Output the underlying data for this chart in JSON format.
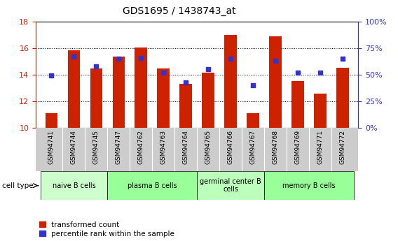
{
  "title": "GDS1695 / 1438743_at",
  "samples": [
    "GSM94741",
    "GSM94744",
    "GSM94745",
    "GSM94747",
    "GSM94762",
    "GSM94763",
    "GSM94764",
    "GSM94765",
    "GSM94766",
    "GSM94767",
    "GSM94768",
    "GSM94769",
    "GSM94771",
    "GSM94772"
  ],
  "transformed_count": [
    11.1,
    15.85,
    14.45,
    15.35,
    16.05,
    14.45,
    13.3,
    14.15,
    17.0,
    11.1,
    16.9,
    13.5,
    12.55,
    14.5
  ],
  "percentile_rank": [
    49,
    67,
    58,
    65,
    66,
    52,
    43,
    55,
    65,
    40,
    63,
    52,
    52,
    65
  ],
  "ylim_left": [
    10,
    18
  ],
  "ylim_right": [
    0,
    100
  ],
  "yticks_left": [
    10,
    12,
    14,
    16,
    18
  ],
  "yticks_right": [
    0,
    25,
    50,
    75,
    100
  ],
  "ytick_labels_right": [
    "0%",
    "25%",
    "50%",
    "75%",
    "100%"
  ],
  "bar_color": "#CC2200",
  "dot_color": "#3333CC",
  "bar_width": 0.55,
  "cell_groups": [
    {
      "label": "naive B cells",
      "start": 0,
      "end": 3,
      "color": "#CCFFCC"
    },
    {
      "label": "plasma B cells",
      "start": 3,
      "end": 7,
      "color": "#99FF99"
    },
    {
      "label": "germinal center B\ncells",
      "start": 7,
      "end": 10,
      "color": "#BBFFBB"
    },
    {
      "label": "memory B cells",
      "start": 10,
      "end": 14,
      "color": "#99FF99"
    }
  ],
  "cell_type_label": "cell type",
  "legend_items": [
    {
      "label": "transformed count",
      "color": "#CC2200"
    },
    {
      "label": "percentile rank within the sample",
      "color": "#3333CC"
    }
  ],
  "axis_color_left": "#CC2200",
  "axis_color_right": "#3333CC",
  "tick_label_bg": "#CCCCCC"
}
